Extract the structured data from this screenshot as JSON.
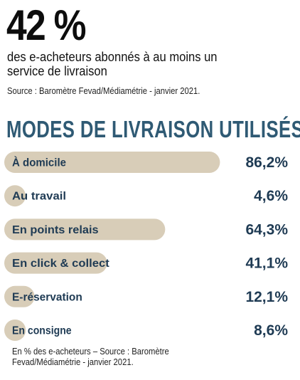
{
  "headline": {
    "stat": "42 %",
    "description": "des e-acheteurs abonnés à au moins un service de livraison",
    "source": "Source : Baromètre Fevad/Médiamétrie - janvier 2021."
  },
  "section_title": "MODES DE LIVRAISON UTILISÉS",
  "footnote": "En % des e-acheteurs – Source : Baromètre Fevad/Médiamétrie - janvier 2021.",
  "colors": {
    "bar": "#d8cdb8",
    "title": "#2f5a74",
    "value_text": "#1f3b54",
    "label_text": "#1f3b54"
  },
  "chart_data": {
    "type": "bar",
    "orientation": "horizontal",
    "categories": [
      "À domicile",
      "Au travail",
      "En points relais",
      "En click & collect",
      "E-réservation",
      "En consigne"
    ],
    "values": [
      86.2,
      4.6,
      64.3,
      41.1,
      12.1,
      8.6
    ],
    "value_labels": [
      "86,2%",
      "4,6%",
      "64,3%",
      "41,1%",
      "12,1%",
      "8,6%"
    ],
    "unit": "%",
    "xlim": [
      0,
      100
    ],
    "grid": false,
    "legend": "none"
  }
}
